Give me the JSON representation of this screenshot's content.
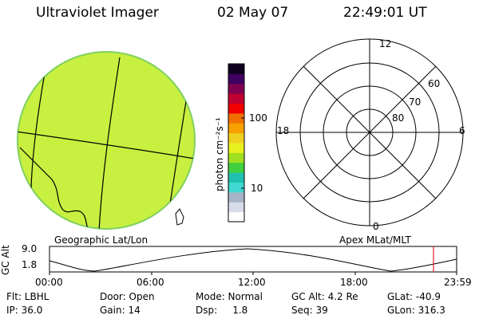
{
  "header": {
    "instrument": "Ultraviolet Imager",
    "date": "02 May 07",
    "time": "22:49:01 UT"
  },
  "globe": {
    "caption": "Geographic Lat/Lon",
    "fill_color": "#c8f040"
  },
  "colorbar": {
    "unit_label": "photon cm⁻²s⁻¹",
    "tick_100": "100",
    "tick_10": "10",
    "colors": [
      "#ffffff",
      "#d8dce8",
      "#a8b4c8",
      "#40d8d0",
      "#20c0b0",
      "#40d040",
      "#a0e020",
      "#e8f020",
      "#f0d020",
      "#f8a000",
      "#f07000",
      "#f00000",
      "#c00030",
      "#800050",
      "#400060",
      "#100020"
    ]
  },
  "polar": {
    "caption": "Apex  MLat/MLT",
    "label_12": "12",
    "label_18": "18",
    "label_6": "6",
    "label_0": "0",
    "label_60": "60",
    "label_70": "70",
    "label_80": "80"
  },
  "altplot": {
    "ylabel": "GC Alt",
    "ymax_label": "9.0",
    "ymin_label": "1.8",
    "marker_color": "#e02020",
    "x_ticks": [
      "00:00",
      "06:00",
      "12:00",
      "18:00",
      "23:59"
    ]
  },
  "status": {
    "flt": "Flt: LBHL",
    "ip": "IP: 36.0",
    "door": "Door: Open",
    "gain": "Gain: 14",
    "mode": "Mode: Normal",
    "dsp": "Dsp:     1.8",
    "gcalt": "GC Alt: 4.2 Re",
    "seq": "Seq: 39",
    "glat": "GLat: -40.9",
    "glon": "GLon: 316.3"
  }
}
